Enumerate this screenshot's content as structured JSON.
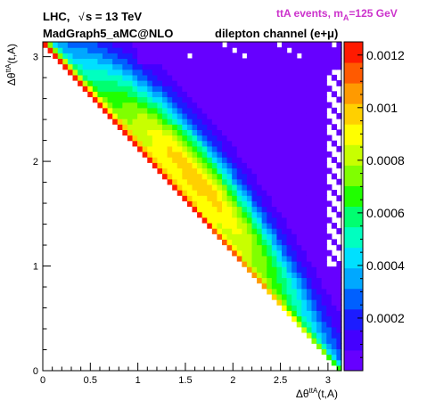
{
  "header": {
    "collider_text": "LHC,",
    "sqrt_symbol": "√",
    "energy_text": "s = 13 TeV",
    "generator_text": "MadGraph5_aMC@NLO",
    "channel_text": "dilepton channel (e+μ)",
    "process_main": "ttA events, m",
    "process_sub": "A",
    "process_tail": "=125 GeV"
  },
  "axes": {
    "x_label_main": "Δθ",
    "x_label_sup": "ttA",
    "x_label_tail": "(t,A)",
    "y_label_main": "Δθ",
    "y_label_sup": "ttA",
    "y_label_tail": "(t,A)"
  },
  "colors": {
    "header_text": "#000000",
    "process_text": "#cc33cc",
    "empty_fill": "#ffffff",
    "palette": [
      "#6600ff",
      "#4400ff",
      "#1c1cff",
      "#0060ff",
      "#00a8ff",
      "#00e0ff",
      "#00ffc0",
      "#00ff70",
      "#20ff00",
      "#80ff00",
      "#c8ff00",
      "#ffff00",
      "#ffd000",
      "#ff9a00",
      "#ff5a00",
      "#ff1a00"
    ]
  },
  "chart_data": {
    "type": "heatmap",
    "title": "",
    "xlabel": "Δθ^{ttA}(t,A)",
    "ylabel": "Δθ^{ttA}(t,A)",
    "xlim": [
      0,
      3.1416
    ],
    "ylim": [
      0,
      3.1416
    ],
    "x_ticks": [
      0,
      0.5,
      1,
      1.5,
      2,
      2.5,
      3
    ],
    "x_tick_labels": [
      "0",
      "0.5",
      "1",
      "1.5",
      "2",
      "2.5",
      "3"
    ],
    "y_ticks": [
      0,
      1,
      2,
      3
    ],
    "y_tick_labels": [
      "0",
      "1",
      "2",
      "3"
    ],
    "z_range": [
      0,
      0.00125
    ],
    "z_ticks": [
      0.0002,
      0.0004,
      0.0006,
      0.0008,
      0.001,
      0.0012
    ],
    "z_tick_labels": [
      "0.0002",
      "0.0004",
      "0.0006",
      "0.0008",
      "0.001",
      "0.0012"
    ],
    "bins": 60,
    "density_model": {
      "support": "y >= |pi - x| (triangular region)",
      "peak_value": 0.00095,
      "peak_location": [
        1.6,
        1.6
      ],
      "ridge": "y ≈ pi - x + 0.1*pi*sin(pi*(x/pi)^1.05)",
      "edge_value_near_x_eq_0": 0.0012
    }
  }
}
